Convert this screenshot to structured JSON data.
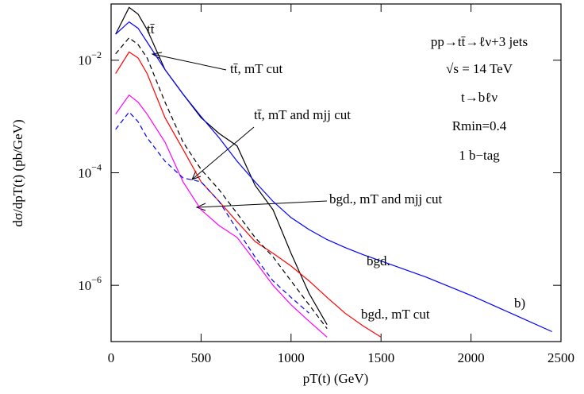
{
  "chart_data": {
    "type": "line",
    "xlabel": "pT(t)  (GeV)",
    "ylabel": "dσ/dpT(t)  (pb/GeV)",
    "log_y": true,
    "grid": false,
    "xlim": [
      0,
      2500
    ],
    "xticks": [
      0,
      500,
      1000,
      1500,
      2000,
      2500
    ],
    "ylim": [
      1e-07,
      0.1
    ],
    "yticks": [
      {
        "value": 0.01,
        "label": "10−2"
      },
      {
        "value": 0.0001,
        "label": "10−4"
      },
      {
        "value": 1e-06,
        "label": "10−6"
      }
    ],
    "x": [
      25,
      100,
      150,
      200,
      300,
      400,
      500,
      600,
      700,
      800,
      900,
      1000,
      1100,
      1200,
      1300,
      1400,
      1500,
      1750,
      2000,
      2250,
      2450
    ],
    "series": [
      {
        "color": "#000000",
        "dash": false,
        "values": [
          0.029,
          0.087,
          0.066,
          0.035,
          0.0068,
          0.0025,
          0.00095,
          0.0005,
          0.0003,
          6e-05,
          2.2e-05,
          3.7e-06,
          7.2e-07,
          2e-07,
          null,
          null,
          null,
          null,
          null,
          null,
          null
        ]
      },
      {
        "color": "#0000ff",
        "dash": false,
        "values": [
          0.029,
          0.048,
          0.037,
          0.021,
          0.0068,
          0.0025,
          0.001,
          0.00042,
          0.00016,
          6.9e-05,
          3.1e-05,
          1.6e-05,
          9.8e-06,
          6.5e-06,
          4.7e-06,
          3.5e-06,
          2.7e-06,
          1.4e-06,
          6.6e-07,
          2.9e-07,
          1.5e-07
        ]
      },
      {
        "color": "#ff0000",
        "dash": false,
        "values": [
          0.0058,
          0.014,
          0.011,
          0.0058,
          0.00095,
          0.00026,
          6.9e-05,
          3.1e-05,
          1.35e-05,
          6e-06,
          3.7e-06,
          2.2e-06,
          1.2e-06,
          6.1e-07,
          3.2e-07,
          1.9e-07,
          1.2e-07,
          null,
          null,
          null,
          null
        ]
      },
      {
        "color": "#000000",
        "dash": true,
        "values": [
          0.013,
          0.025,
          0.019,
          0.011,
          0.0018,
          0.00035,
          0.000115,
          5e-05,
          1.9e-05,
          7.1e-06,
          3.2e-06,
          1.2e-06,
          4.5e-07,
          1.7e-07,
          null,
          null,
          null,
          null,
          null,
          null,
          null
        ]
      },
      {
        "color": "#ff00ff",
        "dash": false,
        "values": [
          0.0011,
          0.0024,
          0.0018,
          0.0011,
          0.00035,
          6.9e-05,
          2.2e-05,
          1.15e-05,
          7.1e-06,
          2.7e-06,
          1e-06,
          4.5e-07,
          2.3e-07,
          1.2e-07,
          null,
          null,
          null,
          null,
          null,
          null,
          null
        ]
      },
      {
        "color": "#0000ff",
        "dash": true,
        "values": [
          0.00059,
          0.0012,
          0.00081,
          0.00042,
          0.00016,
          8.1e-05,
          6.9e-05,
          3.1e-05,
          9.8e-06,
          3.2e-06,
          1.2e-06,
          6.1e-07,
          3.2e-07,
          null,
          null,
          null,
          null,
          null,
          null,
          null,
          null
        ]
      }
    ],
    "annotations": [
      "tt̄",
      "tt̄, mT cut",
      "tt̄, mT and mjj cut",
      "bgd., mT and mjj cut",
      "bgd.",
      "bgd., mT cut",
      "b)",
      "pp→tt̄→ℓν+3 jets",
      "√s = 14 TeV",
      "t→bℓν",
      "Rmin=0.4",
      "1 b−tag"
    ]
  }
}
